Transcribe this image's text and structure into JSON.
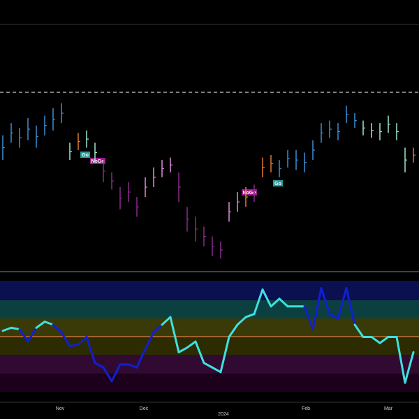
{
  "chart_data": {
    "type": "range_bar",
    "lows": [
      45,
      52,
      50,
      53,
      50,
      55,
      57,
      60,
      45,
      49,
      50,
      44,
      36,
      33,
      25,
      28,
      22,
      30,
      34,
      38,
      40,
      28,
      16,
      12,
      10,
      6,
      5,
      20,
      24,
      26,
      28,
      38,
      40,
      38,
      42,
      41,
      40,
      45,
      52,
      54,
      53,
      60,
      58,
      55,
      54,
      53,
      56,
      53,
      40,
      44
    ],
    "highs": [
      55,
      60,
      58,
      62,
      59,
      63,
      66,
      68,
      52,
      56,
      57,
      52,
      45,
      40,
      34,
      36,
      30,
      38,
      42,
      45,
      46,
      40,
      26,
      22,
      18,
      14,
      12,
      28,
      32,
      34,
      35,
      46,
      47,
      45,
      49,
      49,
      48,
      53,
      60,
      61,
      60,
      67,
      64,
      61,
      60,
      60,
      63,
      60,
      50,
      50
    ],
    "colors": [
      "#3a8fd6",
      "#3a8fd6",
      "#3a8fd6",
      "#3a8fd6",
      "#3a8fd6",
      "#3a8fd6",
      "#3a8fd6",
      "#3a8fd6",
      "#9ee8c8",
      "#e07a30",
      "#9ee8c8",
      "#9ee8c8",
      "#8a2a8a",
      "#8a2a8a",
      "#8a2a8a",
      "#8a2a8a",
      "#8a2a8a",
      "#e08ad8",
      "#e08ad8",
      "#e08ad8",
      "#e08ad8",
      "#8a2a8a",
      "#8a2a8a",
      "#8a2a8a",
      "#8a2a8a",
      "#8a2a8a",
      "#8a2a8a",
      "#e08ad8",
      "#e08ad8",
      "#e07a30",
      "#8a2a8a",
      "#e07a30",
      "#e07a30",
      "#3a8fd6",
      "#3a8fd6",
      "#3a8fd6",
      "#3a8fd6",
      "#3a8fd6",
      "#3a8fd6",
      "#3a8fd6",
      "#3a8fd6",
      "#3a8fd6",
      "#3a8fd6",
      "#9ee8c8",
      "#9ee8c8",
      "#9ee8c8",
      "#9ee8c8",
      "#9ee8c8",
      "#9ee8c8",
      "#e07a30"
    ],
    "ylim": [
      0,
      100
    ],
    "reference_line": 72.5,
    "oscillator": {
      "type": "line",
      "values": [
        0.4,
        0.6,
        0.5,
        -0.3,
        0.6,
        1,
        0.8,
        0.3,
        -0.6,
        -0.5,
        0,
        -1.7,
        -2,
        -2.9,
        -1.8,
        -1.8,
        -2,
        -0.8,
        0.3,
        0.8,
        1.3,
        -1,
        -0.7,
        -0.3,
        -1.7,
        -2,
        -2.3,
        0,
        0.8,
        1.3,
        1.5,
        3.1,
        2,
        2.5,
        2,
        2,
        2,
        0.5,
        3.2,
        1.5,
        1.2,
        3.2,
        0.8,
        0,
        0,
        -0.4,
        0,
        0,
        -3,
        -1
      ],
      "colors": [
        "#40e0e0",
        "#40e0e0",
        "#40e0e0",
        "#1020d0",
        "#1020d0",
        "#40e0e0",
        "#40e0e0",
        "#1020d0",
        "#1020d0",
        "#1020d0",
        "#1020d0",
        "#1020d0",
        "#1020d0",
        "#1020d0",
        "#1020d0",
        "#1020d0",
        "#1020d0",
        "#1020d0",
        "#1020d0",
        "#1020d0",
        "#40e0e0",
        "#40e0e0",
        "#40e0e0",
        "#40e0e0",
        "#40e0e0",
        "#40e0e0",
        "#40e0e0",
        "#40e0e0",
        "#40e0e0",
        "#40e0e0",
        "#40e0e0",
        "#40e0e0",
        "#40e0e0",
        "#40e0e0",
        "#40e0e0",
        "#40e0e0",
        "#40e0e0",
        "#1020d0",
        "#1020d0",
        "#1020d0",
        "#1020d0",
        "#1020d0",
        "#1020d0",
        "#40e0e0",
        "#40e0e0",
        "#40e0e0",
        "#40e0e0",
        "#40e0e0",
        "#40e0e0",
        "#40e0e0"
      ],
      "ylim": [
        -4,
        4
      ]
    },
    "annotations": [
      "Go",
      "NoGo",
      "NoGo",
      "Go"
    ],
    "x_labels": [
      "Nov",
      "Dec",
      "2024",
      "Feb",
      "Mar"
    ]
  }
}
